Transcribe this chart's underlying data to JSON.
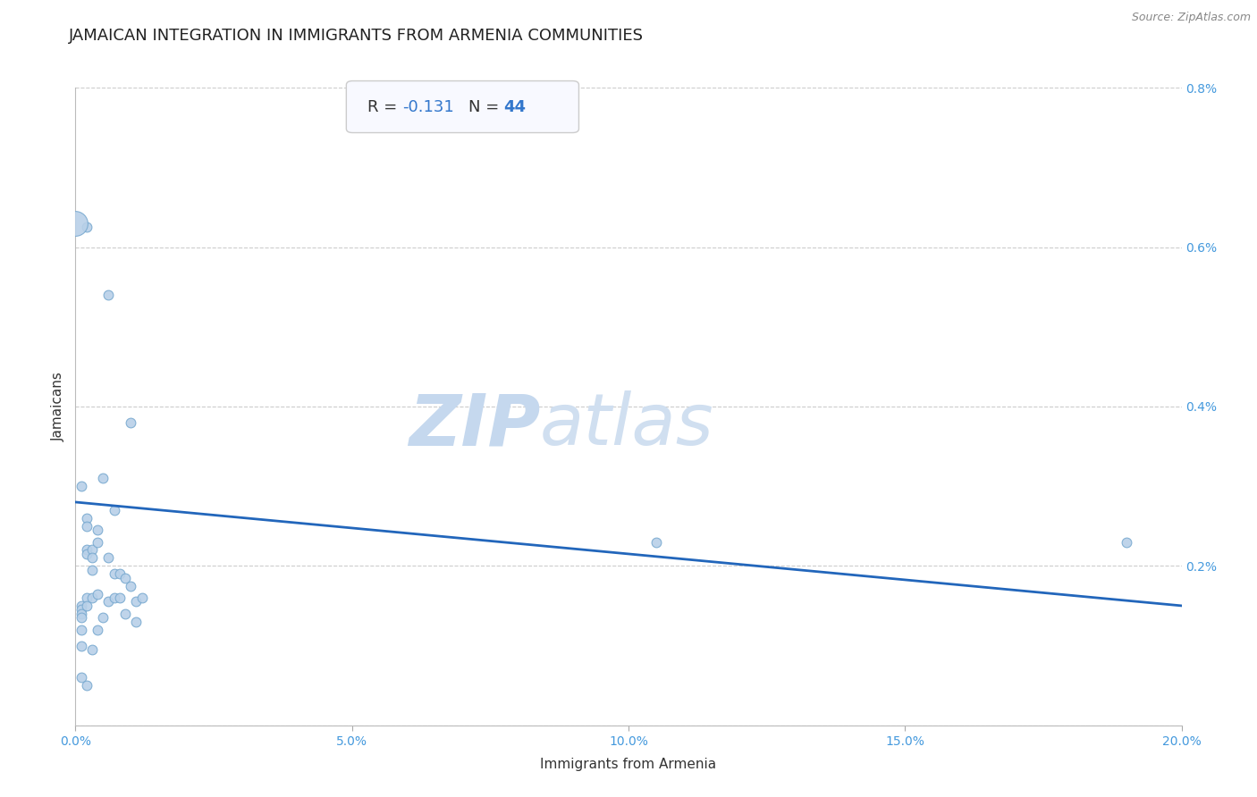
{
  "title": "JAMAICAN INTEGRATION IN IMMIGRANTS FROM ARMENIA COMMUNITIES",
  "source": "Source: ZipAtlas.com",
  "xlabel": "Immigrants from Armenia",
  "ylabel": "Jamaicans",
  "R": -0.131,
  "N": 44,
  "xlim": [
    0.0,
    0.2
  ],
  "ylim": [
    0.0,
    0.008
  ],
  "xticks": [
    0.0,
    0.05,
    0.1,
    0.15,
    0.2
  ],
  "xticklabels": [
    "0.0%",
    "5.0%",
    "10.0%",
    "15.0%",
    "20.0%"
  ],
  "yticks": [
    0.0,
    0.002,
    0.004,
    0.006,
    0.008
  ],
  "yticklabels": [
    "",
    "0.2%",
    "0.4%",
    "0.6%",
    "0.8%"
  ],
  "scatter_color": "#b8d0e8",
  "scatter_edge_color": "#7aaad0",
  "line_color": "#2266bb",
  "watermark_zip": "ZIP",
  "watermark_atlas": "atlas",
  "scatter_x": [
    0.001,
    0.001,
    0.001,
    0.001,
    0.001,
    0.001,
    0.001,
    0.002,
    0.002,
    0.002,
    0.002,
    0.002,
    0.002,
    0.002,
    0.003,
    0.003,
    0.003,
    0.003,
    0.003,
    0.004,
    0.004,
    0.004,
    0.004,
    0.005,
    0.005,
    0.006,
    0.006,
    0.006,
    0.007,
    0.007,
    0.007,
    0.008,
    0.008,
    0.009,
    0.009,
    0.01,
    0.01,
    0.011,
    0.011,
    0.012,
    0.105,
    0.19,
    0.001,
    0.002
  ],
  "scatter_y": [
    0.0015,
    0.00145,
    0.0014,
    0.00135,
    0.0012,
    0.001,
    0.0006,
    0.0026,
    0.0025,
    0.0022,
    0.00215,
    0.0016,
    0.0015,
    0.0005,
    0.0022,
    0.0021,
    0.00195,
    0.0016,
    0.00095,
    0.00245,
    0.0023,
    0.00165,
    0.0012,
    0.0031,
    0.00135,
    0.0054,
    0.0021,
    0.00155,
    0.0027,
    0.0019,
    0.0016,
    0.0019,
    0.0016,
    0.00185,
    0.0014,
    0.0038,
    0.00175,
    0.00155,
    0.0013,
    0.0016,
    0.0023,
    0.0023,
    0.003,
    0.00625
  ],
  "scatter_size": 60,
  "large_scatter_x": [
    0.0
  ],
  "large_scatter_y": [
    0.0063
  ],
  "large_scatter_size": 400,
  "line_x": [
    0.0,
    0.2
  ],
  "line_y_start": 0.0028,
  "line_y_end": 0.0015,
  "background_color": "#ffffff",
  "grid_color": "#cccccc",
  "title_fontsize": 13,
  "axis_label_fontsize": 11,
  "tick_fontsize": 10,
  "tick_color": "#4499dd",
  "stat_box_facecolor": "#f8f9ff",
  "stat_box_edgecolor": "#cccccc",
  "watermark_color_zip": "#c5d8ee",
  "watermark_color_atlas": "#d0dff0"
}
